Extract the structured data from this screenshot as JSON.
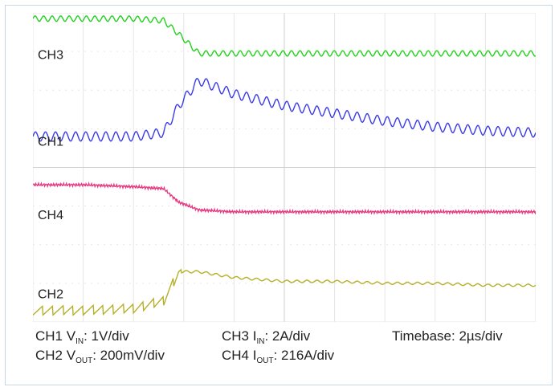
{
  "chart_data": {
    "type": "line",
    "title": "",
    "xlabel": "",
    "ylabel": "",
    "grid": true,
    "grid_divisions": {
      "x": 10,
      "y": 8
    },
    "x_unit": "div",
    "x": [
      0,
      1,
      2,
      2.6,
      2.9,
      3.3,
      4,
      5,
      6,
      7,
      8,
      9,
      10
    ],
    "series": [
      {
        "name": "CH3",
        "color": "#22d11c",
        "values": [
          7.85,
          7.85,
          7.85,
          7.8,
          7.45,
          6.95,
          6.95,
          6.95,
          6.95,
          6.95,
          6.95,
          6.95,
          6.95
        ],
        "ripple_div": 0.07,
        "ripple_period_div": 0.17
      },
      {
        "name": "CH1",
        "color": "#3b3bea",
        "values": [
          4.8,
          4.8,
          4.8,
          4.9,
          5.6,
          6.25,
          5.9,
          5.6,
          5.4,
          5.2,
          5.05,
          4.95,
          4.9
        ],
        "ripple_div": 0.12,
        "ripple_period_div": 0.2
      },
      {
        "name": "CH4",
        "color": "#e63a80",
        "values": [
          3.55,
          3.55,
          3.5,
          3.45,
          3.1,
          2.9,
          2.85,
          2.85,
          2.85,
          2.85,
          2.85,
          2.85,
          2.85
        ],
        "ripple_div": 0.04,
        "ripple_period_div": 0.05
      },
      {
        "name": "CH2",
        "color": "#b5b02a",
        "values": [
          0.3,
          0.3,
          0.35,
          0.55,
          1.3,
          1.3,
          1.15,
          1.05,
          1.05,
          1.0,
          1.0,
          0.95,
          0.95
        ],
        "ripple_div": 0.12,
        "ripple_period_div": 0.2
      }
    ],
    "trace_labels": [
      "CH3",
      "CH1",
      "CH4",
      "CH2"
    ],
    "legend": {
      "ch1_prefix": "CH1 V",
      "ch1_sub": "IN",
      "ch1_scale": ": 1V/div",
      "ch2_prefix": "CH2 V",
      "ch2_sub": "OUT",
      "ch2_scale": ": 200mV/div",
      "ch3_prefix": "CH3 I",
      "ch3_sub": "IN",
      "ch3_scale": ": 2A/div",
      "ch4_prefix": "CH4 I",
      "ch4_sub": "OUT",
      "ch4_scale": ": 216A/div",
      "timebase": "Timebase: 2µs/div"
    }
  }
}
